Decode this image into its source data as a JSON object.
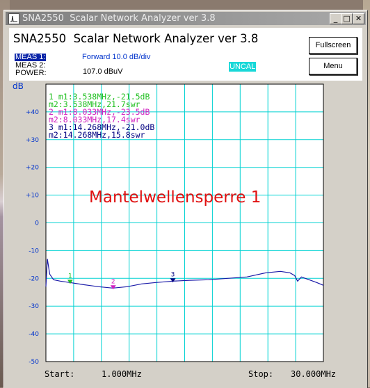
{
  "window": {
    "title": "SNA2550  Scalar Network Analyzer ver 3.8",
    "controls": {
      "minimize": "_",
      "maximize": "□",
      "close": "✕"
    }
  },
  "header": {
    "app_title": "SNA2550  Scalar Network Analyzer ver 3.8",
    "meas1_label": "MEAS 1:",
    "meas2_label": "MEAS 2:",
    "power_label": "POWER:",
    "meas1_value": "Forward 10.0 dB/div",
    "power_value": "107.0 dBuV",
    "uncal": "UNCAL"
  },
  "buttons": {
    "fullscreen": "Fullscreen",
    "menu": "Menu"
  },
  "plot": {
    "unit": "dB",
    "annotation": "Mantelwellensperre 1",
    "start_label": "Start:",
    "start_value": "1.000MHz",
    "stop_label": "Stop:",
    "stop_value": "30.000MHz",
    "colors": {
      "background": "#ffffff",
      "grid": "#00d2d2",
      "trace": "#1a1aa8",
      "annotation": "#e01010",
      "marker1": "#22c022",
      "marker2": "#d020c0",
      "marker3": "#000080"
    },
    "markers": [
      {
        "id": "1",
        "color": "#22c022",
        "m1": "1 m1:3.538MHz,-21.5dB",
        "m2": "  m2:3.538MHz,21.7swr"
      },
      {
        "id": "2",
        "color": "#d020c0",
        "m1": "2 m1:8.033MHz,-23.5dB",
        "m2": "  m2:8.033MHz,17.4swr"
      },
      {
        "id": "3",
        "color": "#000080",
        "m1": "3 m1:14.268MHz,-21.0dB",
        "m2": "  m2:14.268MHz,15.8swr"
      }
    ]
  },
  "chart_data": {
    "type": "line",
    "xlabel": "",
    "ylabel": "dB",
    "xlim": [
      1.0,
      30.0
    ],
    "ylim": [
      -50,
      50
    ],
    "yticks": [
      "+40",
      "+30",
      "+20",
      "+10",
      "0",
      "-10",
      "-20",
      "-30",
      "-40",
      "-50"
    ],
    "series": [
      {
        "x": [
          1.0,
          1.15,
          1.4,
          1.8,
          2.5,
          3.5,
          5.0,
          6.5,
          8.0,
          9.5,
          11.0,
          12.5,
          14.3,
          16.0,
          18.0,
          20.0,
          22.0,
          24.0,
          25.5,
          26.5,
          27.0,
          27.3,
          27.7,
          28.5,
          29.3,
          30.0
        ],
        "y": [
          -23.0,
          -13.0,
          -18.5,
          -20.5,
          -21.0,
          -21.5,
          -22.3,
          -23.0,
          -23.5,
          -23.0,
          -22.0,
          -21.5,
          -21.0,
          -20.7,
          -20.5,
          -20.0,
          -19.5,
          -18.0,
          -17.5,
          -18.0,
          -19.0,
          -21.0,
          -19.5,
          -20.5,
          -21.5,
          -22.5
        ]
      }
    ],
    "markers": [
      {
        "label": "1",
        "x": 3.538,
        "y": -21.5
      },
      {
        "label": "2",
        "x": 8.033,
        "y": -23.5
      },
      {
        "label": "3",
        "x": 14.268,
        "y": -21.0
      }
    ]
  }
}
